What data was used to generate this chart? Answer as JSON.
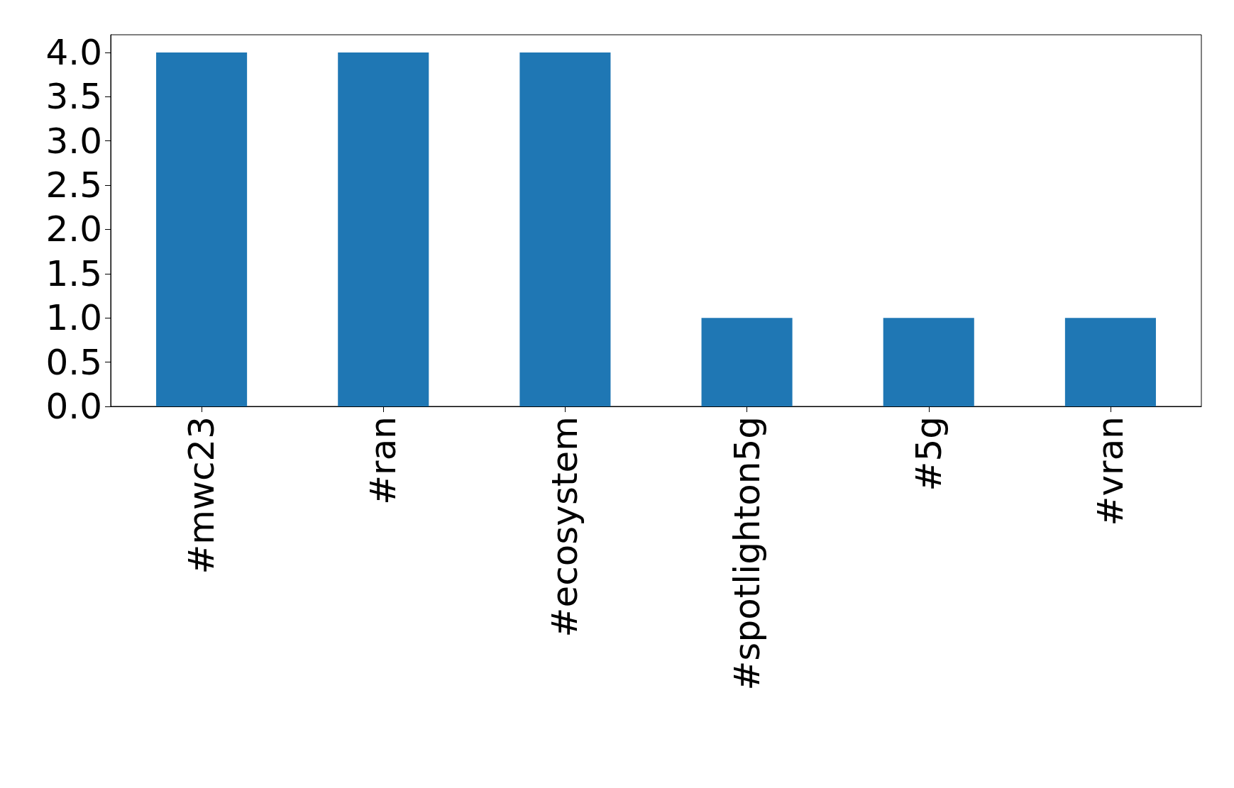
{
  "chart_data": {
    "type": "bar",
    "categories": [
      "#mwc23",
      "#ran",
      "#ecosystem",
      "#spotlighton5g",
      "#5g",
      "#vran"
    ],
    "values": [
      4,
      4,
      4,
      1,
      1,
      1
    ],
    "color": "#1f77b4",
    "ylim": [
      0,
      4.2
    ],
    "yticks": [
      {
        "value": 0,
        "label": "0.0"
      },
      0.5,
      {
        "value": 1,
        "label": "1.0"
      },
      1.5,
      {
        "value": 2,
        "label": "2.0"
      },
      2.5,
      {
        "value": 3,
        "label": "3.0"
      },
      3.5,
      {
        "value": 4,
        "label": "4.0"
      }
    ],
    "grid": false
  }
}
